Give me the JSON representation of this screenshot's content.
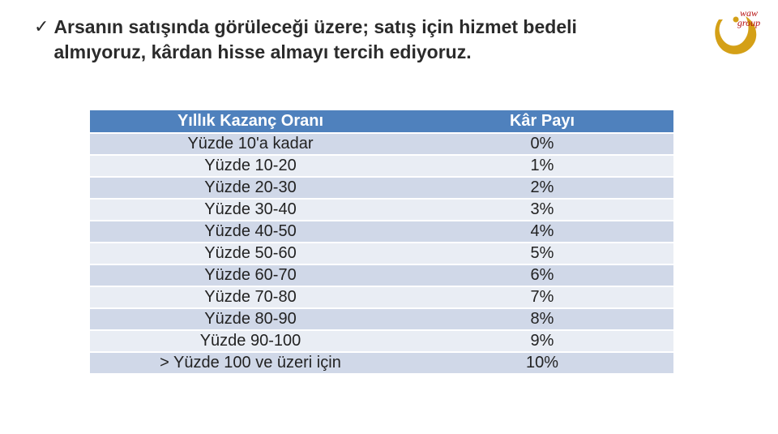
{
  "bullet": {
    "text": "Arsanın satışında görüleceği üzere; satış için hizmet bedeli almıyoruz, kârdan hisse almayı tercih ediyoruz."
  },
  "logo": {
    "top_text": "waw",
    "bottom_text": "group",
    "primary_color": "#d4a017",
    "secondary_color": "#b50f0f"
  },
  "table": {
    "header_bg": "#4f81bd",
    "header_fg": "#ffffff",
    "row_bg": "#d0d8e8",
    "row_alt_bg": "#e9edf4",
    "font_size": 20,
    "columns": [
      "Yıllık Kazanç Oranı",
      "Kâr Payı"
    ],
    "rows": [
      [
        "Yüzde 10'a kadar",
        "0%"
      ],
      [
        "Yüzde 10-20",
        "1%"
      ],
      [
        "Yüzde 20-30",
        "2%"
      ],
      [
        "Yüzde 30-40",
        "3%"
      ],
      [
        "Yüzde 40-50",
        "4%"
      ],
      [
        "Yüzde 50-60",
        "5%"
      ],
      [
        "Yüzde 60-70",
        "6%"
      ],
      [
        "Yüzde 70-80",
        "7%"
      ],
      [
        "Yüzde 80-90",
        "8%"
      ],
      [
        "Yüzde 90-100",
        "9%"
      ],
      [
        "> Yüzde 100 ve üzeri için",
        "10%"
      ]
    ]
  }
}
